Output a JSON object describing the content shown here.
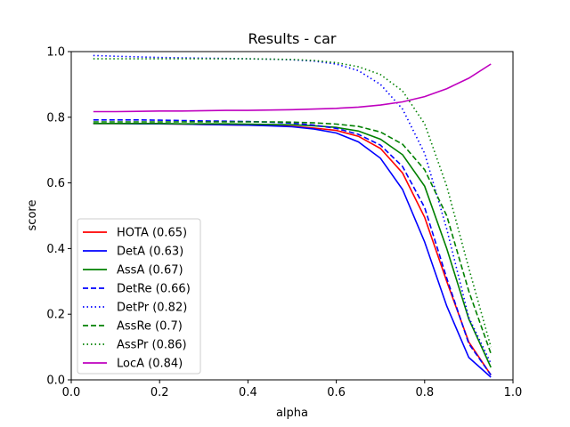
{
  "chart_data": {
    "type": "line",
    "title": "Results - car",
    "xlabel": "alpha",
    "ylabel": "score",
    "xlim": [
      0.0,
      1.0
    ],
    "ylim": [
      0.0,
      1.0
    ],
    "xticks": [
      "0.0",
      "0.2",
      "0.4",
      "0.6",
      "0.8",
      "1.0"
    ],
    "yticks": [
      "0.0",
      "0.2",
      "0.4",
      "0.6",
      "0.8",
      "1.0"
    ],
    "grid": false,
    "legend_position": "lower-left",
    "x": [
      0.05,
      0.1,
      0.15,
      0.2,
      0.25,
      0.3,
      0.35,
      0.4,
      0.45,
      0.5,
      0.55,
      0.6,
      0.65,
      0.7,
      0.75,
      0.8,
      0.85,
      0.9,
      0.95
    ],
    "series": [
      {
        "name": "HOTA (0.65)",
        "color": "#ff0000",
        "style": "solid",
        "values": [
          0.781,
          0.781,
          0.781,
          0.78,
          0.779,
          0.778,
          0.777,
          0.776,
          0.775,
          0.772,
          0.767,
          0.76,
          0.742,
          0.705,
          0.63,
          0.495,
          0.3,
          0.115,
          0.015
        ]
      },
      {
        "name": "DetA (0.63)",
        "color": "#0000ff",
        "style": "solid",
        "values": [
          0.781,
          0.781,
          0.78,
          0.78,
          0.779,
          0.778,
          0.777,
          0.776,
          0.774,
          0.771,
          0.764,
          0.752,
          0.725,
          0.675,
          0.58,
          0.42,
          0.225,
          0.068,
          0.008
        ]
      },
      {
        "name": "AssA (0.67)",
        "color": "#008000",
        "style": "solid",
        "values": [
          0.781,
          0.781,
          0.781,
          0.781,
          0.78,
          0.78,
          0.78,
          0.779,
          0.778,
          0.777,
          0.774,
          0.769,
          0.758,
          0.733,
          0.686,
          0.59,
          0.4,
          0.185,
          0.038
        ]
      },
      {
        "name": "DetRe (0.66)",
        "color": "#0000ff",
        "style": "dashed",
        "values": [
          0.792,
          0.792,
          0.792,
          0.791,
          0.79,
          0.789,
          0.788,
          0.787,
          0.785,
          0.782,
          0.776,
          0.766,
          0.748,
          0.715,
          0.65,
          0.525,
          0.31,
          0.11,
          0.015
        ]
      },
      {
        "name": "DetPr (0.82)",
        "color": "#0000ff",
        "style": "dotted",
        "values": [
          0.988,
          0.986,
          0.984,
          0.982,
          0.981,
          0.98,
          0.979,
          0.978,
          0.977,
          0.975,
          0.971,
          0.962,
          0.942,
          0.9,
          0.825,
          0.69,
          0.46,
          0.19,
          0.05
        ]
      },
      {
        "name": "AssRe (0.7)",
        "color": "#008000",
        "style": "dashed",
        "values": [
          0.786,
          0.786,
          0.786,
          0.786,
          0.786,
          0.786,
          0.786,
          0.786,
          0.786,
          0.785,
          0.783,
          0.779,
          0.772,
          0.755,
          0.718,
          0.64,
          0.5,
          0.27,
          0.08
        ]
      },
      {
        "name": "AssPr (0.86)",
        "color": "#008000",
        "style": "dotted",
        "values": [
          0.978,
          0.978,
          0.978,
          0.978,
          0.978,
          0.978,
          0.978,
          0.978,
          0.977,
          0.976,
          0.973,
          0.966,
          0.954,
          0.93,
          0.88,
          0.78,
          0.59,
          0.34,
          0.1
        ]
      },
      {
        "name": "LocA (0.84)",
        "color": "#bf00bf",
        "style": "solid",
        "values": [
          0.817,
          0.817,
          0.818,
          0.819,
          0.819,
          0.82,
          0.821,
          0.821,
          0.822,
          0.823,
          0.825,
          0.827,
          0.831,
          0.837,
          0.847,
          0.863,
          0.887,
          0.919,
          0.962
        ]
      }
    ]
  }
}
